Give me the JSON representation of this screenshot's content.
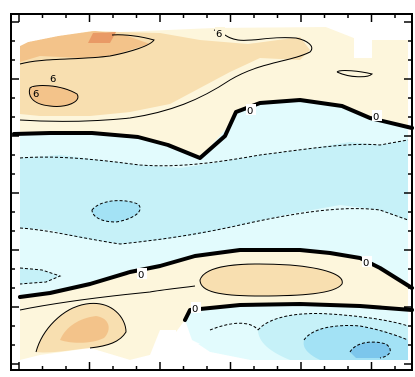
{
  "chart_data": {
    "type": "contour",
    "title": "",
    "xlabel": "",
    "ylabel": "",
    "grid": false,
    "legend": "none",
    "contour_labels": [
      {
        "id": "c6a",
        "text": "6"
      },
      {
        "id": "c6b",
        "text": "6"
      },
      {
        "id": "c6c",
        "text": "6"
      },
      {
        "id": "c0a",
        "text": "0"
      },
      {
        "id": "c0b",
        "text": "0"
      },
      {
        "id": "c0c",
        "text": "0"
      },
      {
        "id": "c0d",
        "text": "0"
      },
      {
        "id": "c0e",
        "text": "0"
      }
    ],
    "colors": {
      "positive_light": "#fdf6dc",
      "positive_mid": "#f8dfb0",
      "positive_strong": "#f3c38a",
      "positive_peak": "#e99a66",
      "negative_light": "#e2fbfd",
      "negative_mid": "#c6f1f8",
      "negative_strong": "#a3e2f5",
      "negative_peak": "#7cc6ec",
      "zero_line": "#000000"
    }
  }
}
